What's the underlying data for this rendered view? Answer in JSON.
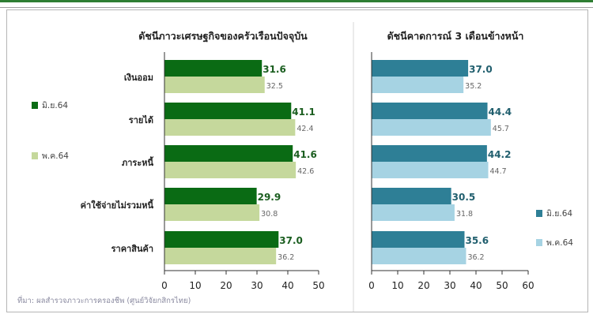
{
  "colors": {
    "left_primary": "#0a6b14",
    "left_secondary": "#c5d89c",
    "right_primary": "#2e7f96",
    "right_secondary": "#a6d3e3",
    "header_accent": "#2e7d32"
  },
  "source_note": "ที่มา: ผลสำรวจภาวะการครองชีพ (ศูนย์วิจัยกสิกรไทย)",
  "chart_data": [
    {
      "type": "bar",
      "orientation": "horizontal",
      "title": "ดัชนีภาวะเศรษฐกิจของครัวเรือนปัจจุบัน",
      "categories": [
        "เงินออม",
        "รายได้",
        "ภาระหนี้",
        "ค่าใช้จ่ายไม่รวมหนี้",
        "ราคาสินค้า"
      ],
      "series": [
        {
          "name": "มิ.ย.64",
          "values": [
            31.6,
            41.1,
            41.6,
            29.9,
            37.0
          ],
          "value_labels": [
            "31.6",
            "41.1",
            "41.6",
            "29.9",
            "37.0"
          ]
        },
        {
          "name": "พ.ค.64",
          "values": [
            32.5,
            42.4,
            42.6,
            30.8,
            36.2
          ],
          "value_labels": [
            "32.5",
            "42.4",
            "42.6",
            "30.8",
            "36.2"
          ]
        }
      ],
      "xlim": [
        0,
        50
      ],
      "xticks": [
        "0",
        "10",
        "20",
        "30",
        "40",
        "50"
      ],
      "legend_position": "left",
      "grid": false
    },
    {
      "type": "bar",
      "orientation": "horizontal",
      "title": "ดัชนีคาดการณ์ 3 เดือนข้างหน้า",
      "categories": [
        "เงินออม",
        "รายได้",
        "ภาระหนี้",
        "ค่าใช้จ่ายไม่รวมหนี้",
        "ราคาสินค้า"
      ],
      "series": [
        {
          "name": "มิ.ย.64",
          "values": [
            37.0,
            44.4,
            44.2,
            30.5,
            35.6
          ],
          "value_labels": [
            "37.0",
            "44.4",
            "44.2",
            "30.5",
            "35.6"
          ]
        },
        {
          "name": "พ.ค.64",
          "values": [
            35.2,
            45.7,
            44.7,
            31.8,
            36.2
          ],
          "value_labels": [
            "35.2",
            "45.7",
            "44.7",
            "31.8",
            "36.2"
          ]
        }
      ],
      "xlim": [
        0,
        60
      ],
      "xticks": [
        "0",
        "10",
        "20",
        "30",
        "40",
        "50",
        "60"
      ],
      "legend_position": "bottom-right",
      "grid": false
    }
  ]
}
